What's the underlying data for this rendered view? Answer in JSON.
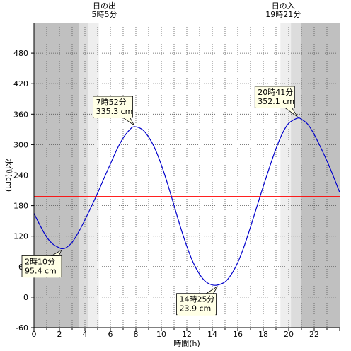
{
  "chart_data": {
    "type": "line",
    "xlabel": "時間(h)",
    "ylabel": "水位(cm)",
    "xlim": [
      0,
      24
    ],
    "ylim": [
      -60,
      540
    ],
    "x_ticks": [
      0,
      2,
      4,
      6,
      8,
      10,
      12,
      14,
      16,
      18,
      20,
      22
    ],
    "y_ticks": [
      -60,
      0,
      60,
      120,
      180,
      240,
      300,
      360,
      420,
      480
    ],
    "grid": "dotted-hourly",
    "reference_line": {
      "y": 198,
      "color": "#ff0000"
    },
    "sunrise": {
      "label": "日の出",
      "time_label": "5時5分",
      "hour": 5.083
    },
    "sunset": {
      "label": "日の入",
      "time_label": "19時21分",
      "hour": 19.35
    },
    "twilight_bands": {
      "morning": [
        3.5,
        5.083
      ],
      "evening": [
        19.35,
        21.0
      ]
    },
    "colors": {
      "night": "#c0c0c0",
      "twilight_dark": "#dcdcdc",
      "twilight_light": "#eeeeee",
      "line": "#0000cc",
      "reference": "#ff0000"
    },
    "series": [
      {
        "x": [
          0,
          0.5,
          1,
          1.5,
          2,
          2.167,
          2.5,
          3,
          3.5,
          4,
          4.5,
          5,
          5.5,
          6,
          6.5,
          7,
          7.5,
          7.867,
          8.5,
          9,
          9.5,
          10,
          10.5,
          11,
          11.5,
          12,
          12.5,
          13,
          13.5,
          14,
          14.417,
          15,
          15.5,
          16,
          16.5,
          17,
          17.5,
          18,
          18.5,
          19,
          19.5,
          20,
          20.683,
          21,
          21.5,
          22,
          22.5,
          23,
          23.5,
          24
        ],
        "y": [
          165,
          140,
          118,
          104,
          97,
          95.4,
          97,
          108,
          128,
          152,
          178,
          205,
          234,
          262,
          290,
          313,
          329,
          335.3,
          330,
          315,
          292,
          260,
          222,
          180,
          138,
          100,
          68,
          45,
          30,
          24,
          23.9,
          30,
          45,
          68,
          100,
          138,
          178,
          218,
          256,
          292,
          322,
          342,
          352.1,
          350,
          340,
          320,
          295,
          268,
          238,
          206
        ]
      }
    ],
    "annotations": [
      {
        "time_label": "2時10分",
        "value_label": "95.4 cm",
        "x": 2.167,
        "y": 95.4
      },
      {
        "time_label": "7時52分",
        "value_label": "335.3 cm",
        "x": 7.867,
        "y": 335.3
      },
      {
        "time_label": "14時25分",
        "value_label": "23.9 cm",
        "x": 14.417,
        "y": 23.9
      },
      {
        "time_label": "20時41分",
        "value_label": "352.1 cm",
        "x": 20.683,
        "y": 352.1
      }
    ]
  }
}
